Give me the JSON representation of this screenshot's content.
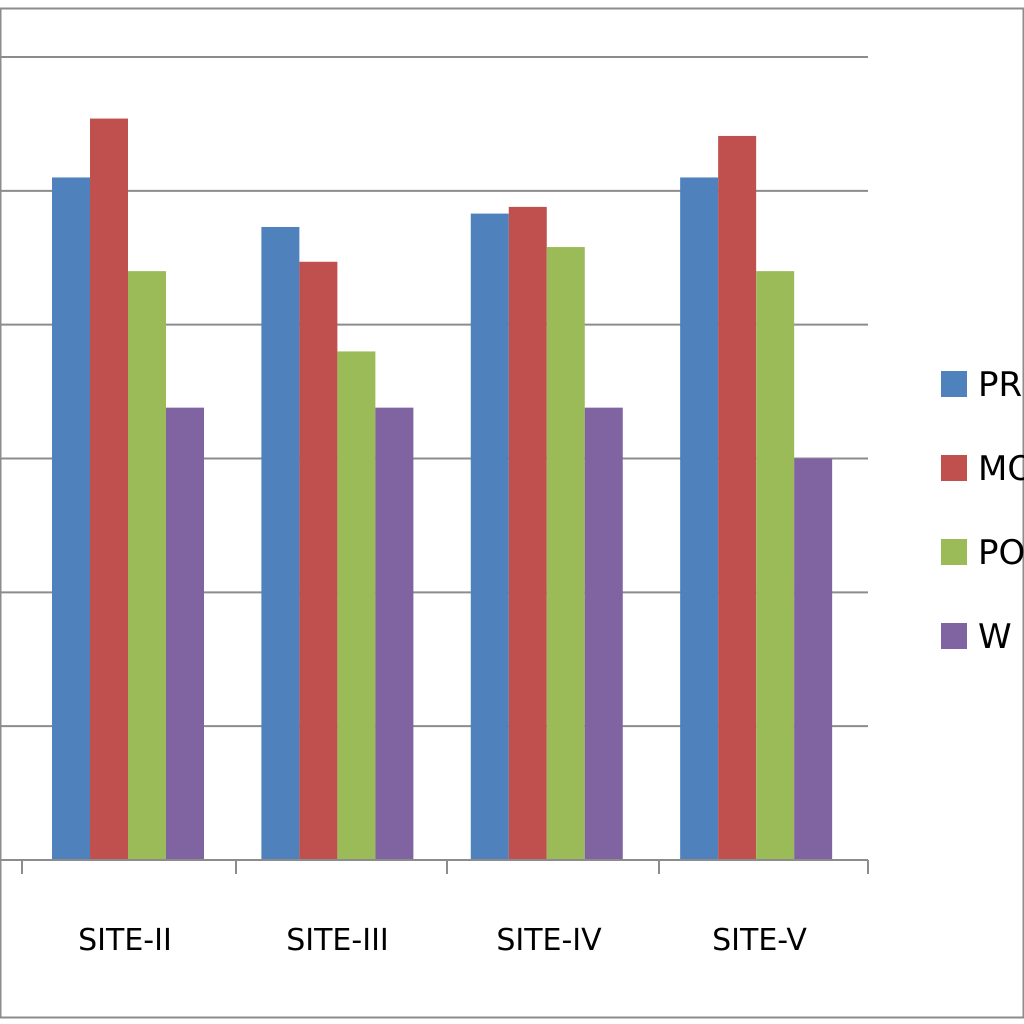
{
  "chart_data": {
    "type": "bar",
    "categories": [
      "SITE-II",
      "SITE-III",
      "SITE-IV",
      "SITE-V"
    ],
    "series": [
      {
        "name": "PR",
        "color": "#4f81bd",
        "values": [
          5.1,
          4.73,
          4.83,
          5.1
        ]
      },
      {
        "name": "MO",
        "color": "#c0504d",
        "values": [
          5.54,
          4.47,
          4.88,
          5.41
        ]
      },
      {
        "name": "PO",
        "color": "#9bbb59",
        "values": [
          4.4,
          3.8,
          4.58,
          4.4
        ]
      },
      {
        "name": "W",
        "color": "#8064a2",
        "values": [
          3.38,
          3.38,
          3.38,
          3.0
        ]
      }
    ],
    "ylim": [
      0,
      6
    ],
    "grid": true,
    "legend_position": "right"
  }
}
